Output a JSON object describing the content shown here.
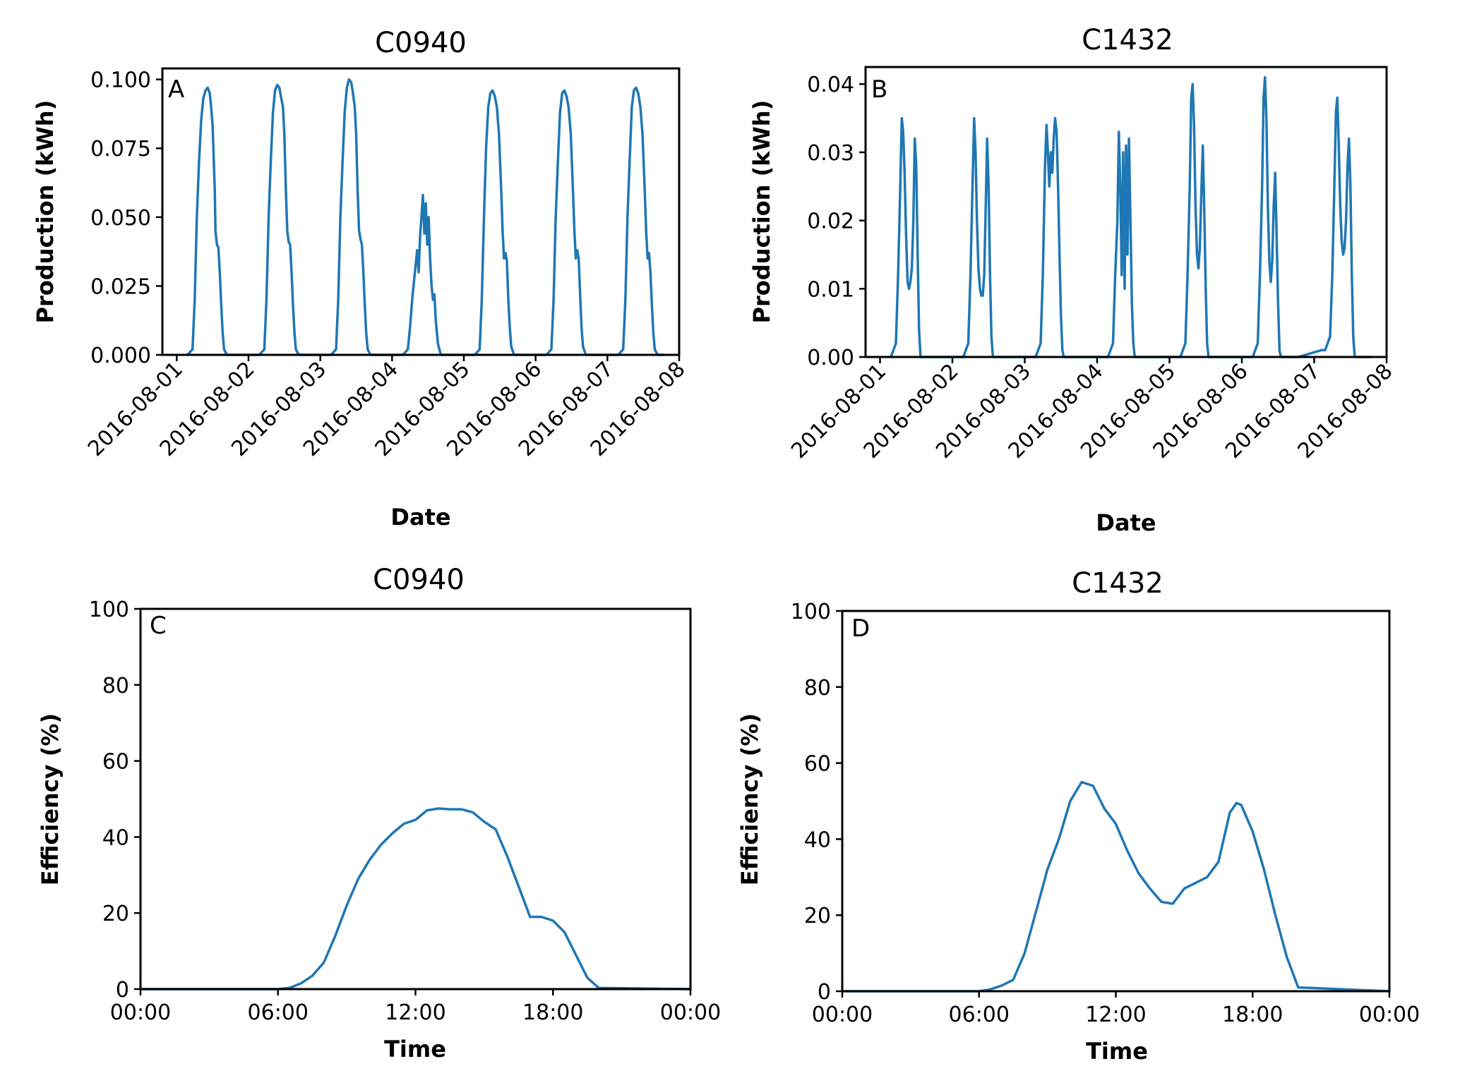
{
  "colors": {
    "series": "#1f77b4"
  },
  "chart_data": [
    {
      "id": "A",
      "type": "line",
      "panel_label": "A",
      "title": "C0940",
      "xlabel": "Date",
      "ylabel": "Production (kWh)",
      "xlim": [
        -0.2,
        7.0
      ],
      "ylim": [
        0,
        0.104
      ],
      "yticks": [
        0,
        0.025,
        0.05,
        0.075,
        0.1
      ],
      "ytick_labels": [
        "0.000",
        "0.025",
        "0.050",
        "0.075",
        "0.100"
      ],
      "xticks": [
        0,
        1,
        2,
        3,
        4,
        5,
        6,
        7
      ],
      "xtick_labels": [
        "2016-08-01",
        "2016-08-02",
        "2016-08-03",
        "2016-08-04",
        "2016-08-05",
        "2016-08-06",
        "2016-08-07",
        "2016-08-08"
      ],
      "series": [
        {
          "name": "production",
          "x": [
            0.15,
            0.22,
            0.25,
            0.28,
            0.31,
            0.34,
            0.37,
            0.4,
            0.43,
            0.46,
            0.48,
            0.5,
            0.53,
            0.54,
            0.56,
            0.58,
            0.6,
            0.62,
            0.64,
            0.66,
            0.7,
            0.75,
            0.78,
            1.15,
            1.22,
            1.25,
            1.28,
            1.31,
            1.34,
            1.37,
            1.4,
            1.43,
            1.45,
            1.48,
            1.5,
            1.52,
            1.54,
            1.56,
            1.58,
            1.6,
            1.62,
            1.64,
            1.66,
            1.7,
            1.75,
            1.78,
            2.15,
            2.22,
            2.25,
            2.28,
            2.31,
            2.34,
            2.37,
            2.4,
            2.43,
            2.45,
            2.48,
            2.5,
            2.52,
            2.54,
            2.56,
            2.58,
            2.6,
            2.62,
            2.64,
            2.66,
            2.7,
            2.75,
            2.78,
            3.15,
            3.22,
            3.25,
            3.28,
            3.31,
            3.33,
            3.35,
            3.37,
            3.39,
            3.41,
            3.43,
            3.45,
            3.47,
            3.49,
            3.51,
            3.53,
            3.55,
            3.57,
            3.59,
            3.61,
            3.64,
            3.68,
            3.72,
            3.76,
            3.8,
            4.15,
            4.22,
            4.25,
            4.28,
            4.31,
            4.34,
            4.37,
            4.4,
            4.43,
            4.46,
            4.49,
            4.52,
            4.54,
            4.56,
            4.58,
            4.6,
            4.62,
            4.64,
            4.66,
            4.7,
            4.75,
            4.78,
            5.15,
            5.22,
            5.25,
            5.28,
            5.31,
            5.34,
            5.37,
            5.4,
            5.43,
            5.46,
            5.49,
            5.52,
            5.54,
            5.56,
            5.58,
            5.6,
            5.62,
            5.64,
            5.66,
            5.7,
            5.75,
            5.78,
            6.15,
            6.22,
            6.25,
            6.28,
            6.31,
            6.34,
            6.37,
            6.4,
            6.43,
            6.46,
            6.49,
            6.52,
            6.54,
            6.56,
            6.58,
            6.6,
            6.62,
            6.64,
            6.66,
            6.7,
            6.75,
            6.78
          ],
          "y": [
            0,
            0.002,
            0.02,
            0.05,
            0.07,
            0.085,
            0.093,
            0.096,
            0.097,
            0.095,
            0.09,
            0.083,
            0.06,
            0.045,
            0.04,
            0.039,
            0.03,
            0.018,
            0.008,
            0.002,
            0,
            0,
            0,
            0,
            0.002,
            0.02,
            0.05,
            0.07,
            0.088,
            0.096,
            0.098,
            0.097,
            0.094,
            0.09,
            0.08,
            0.06,
            0.045,
            0.041,
            0.04,
            0.03,
            0.018,
            0.008,
            0.002,
            0,
            0,
            0,
            0,
            0.002,
            0.02,
            0.05,
            0.07,
            0.088,
            0.097,
            0.1,
            0.099,
            0.096,
            0.09,
            0.08,
            0.06,
            0.045,
            0.042,
            0.04,
            0.03,
            0.018,
            0.008,
            0.002,
            0,
            0,
            0,
            0,
            0.002,
            0.01,
            0.02,
            0.028,
            0.033,
            0.038,
            0.03,
            0.043,
            0.05,
            0.058,
            0.044,
            0.055,
            0.04,
            0.05,
            0.035,
            0.025,
            0.02,
            0.022,
            0.012,
            0.004,
            0,
            0,
            0,
            0,
            0,
            0.002,
            0.02,
            0.05,
            0.075,
            0.09,
            0.095,
            0.096,
            0.094,
            0.09,
            0.08,
            0.06,
            0.045,
            0.035,
            0.037,
            0.034,
            0.02,
            0.01,
            0.003,
            0,
            0,
            0,
            0,
            0.002,
            0.02,
            0.05,
            0.07,
            0.088,
            0.095,
            0.096,
            0.094,
            0.09,
            0.08,
            0.06,
            0.045,
            0.035,
            0.038,
            0.035,
            0.022,
            0.01,
            0.003,
            0,
            0,
            0,
            0,
            0.002,
            0.02,
            0.05,
            0.07,
            0.09,
            0.096,
            0.097,
            0.095,
            0.09,
            0.08,
            0.06,
            0.045,
            0.035,
            0.037,
            0.03,
            0.018,
            0.008,
            0.002,
            0,
            0,
            0
          ]
        }
      ]
    },
    {
      "id": "B",
      "type": "line",
      "panel_label": "B",
      "title": "C1432",
      "xlabel": "Date",
      "ylabel": "Production (kWh)",
      "xlim": [
        -0.2,
        7.0
      ],
      "ylim": [
        0,
        0.0425
      ],
      "yticks": [
        0,
        0.01,
        0.02,
        0.03,
        0.04
      ],
      "ytick_labels": [
        "0.00",
        "0.01",
        "0.02",
        "0.03",
        "0.04"
      ],
      "xticks": [
        0,
        1,
        2,
        3,
        4,
        5,
        6,
        7
      ],
      "xtick_labels": [
        "2016-08-01",
        "2016-08-02",
        "2016-08-03",
        "2016-08-04",
        "2016-08-05",
        "2016-08-06",
        "2016-08-07",
        "2016-08-08"
      ],
      "series": [
        {
          "name": "production",
          "x": [
            0.15,
            0.22,
            0.25,
            0.28,
            0.3,
            0.32,
            0.34,
            0.36,
            0.38,
            0.4,
            0.42,
            0.44,
            0.46,
            0.48,
            0.5,
            0.52,
            0.54,
            0.56,
            0.58,
            0.6,
            0.62,
            0.64,
            0.7,
            0.78,
            1.15,
            1.22,
            1.25,
            1.28,
            1.3,
            1.32,
            1.34,
            1.36,
            1.38,
            1.4,
            1.42,
            1.44,
            1.46,
            1.48,
            1.5,
            1.52,
            1.54,
            1.56,
            1.58,
            1.6,
            1.62,
            1.64,
            1.7,
            1.78,
            2.15,
            2.22,
            2.25,
            2.28,
            2.3,
            2.32,
            2.34,
            2.36,
            2.38,
            2.4,
            2.42,
            2.44,
            2.46,
            2.48,
            2.5,
            2.52,
            2.54,
            2.56,
            2.58,
            2.6,
            2.62,
            2.64,
            2.7,
            2.78,
            3.15,
            3.22,
            3.25,
            3.28,
            3.3,
            3.32,
            3.34,
            3.36,
            3.38,
            3.4,
            3.42,
            3.44,
            3.46,
            3.48,
            3.5,
            3.52,
            3.54,
            3.56,
            3.58,
            3.6,
            3.62,
            3.64,
            3.7,
            3.78,
            4.15,
            4.22,
            4.25,
            4.28,
            4.3,
            4.32,
            4.34,
            4.36,
            4.38,
            4.4,
            4.42,
            4.44,
            4.46,
            4.48,
            4.5,
            4.52,
            4.54,
            4.56,
            4.58,
            4.6,
            4.62,
            4.64,
            4.7,
            4.78,
            5.15,
            5.22,
            5.25,
            5.28,
            5.3,
            5.32,
            5.34,
            5.36,
            5.38,
            5.4,
            5.42,
            5.44,
            5.46,
            5.48,
            5.5,
            5.52,
            5.54,
            5.56,
            5.58,
            5.6,
            5.62,
            5.64,
            5.7,
            5.78,
            6.1,
            6.15,
            6.22,
            6.25,
            6.28,
            6.3,
            6.32,
            6.34,
            6.36,
            6.38,
            6.4,
            6.42,
            6.44,
            6.46,
            6.48,
            6.5,
            6.52,
            6.54,
            6.56,
            6.58,
            6.6,
            6.62,
            6.64,
            6.7,
            6.78
          ],
          "y": [
            0,
            0.002,
            0.012,
            0.025,
            0.035,
            0.033,
            0.027,
            0.018,
            0.011,
            0.01,
            0.011,
            0.013,
            0.02,
            0.032,
            0.028,
            0.015,
            0.004,
            0,
            0,
            0,
            0,
            0,
            0,
            0,
            0,
            0.002,
            0.012,
            0.026,
            0.035,
            0.03,
            0.02,
            0.013,
            0.01,
            0.009,
            0.009,
            0.012,
            0.022,
            0.032,
            0.025,
            0.012,
            0.003,
            0,
            0,
            0,
            0,
            0,
            0,
            0,
            0,
            0.002,
            0.012,
            0.028,
            0.034,
            0.03,
            0.025,
            0.03,
            0.027,
            0.032,
            0.035,
            0.033,
            0.025,
            0.015,
            0.006,
            0.001,
            0,
            0,
            0,
            0,
            0,
            0,
            0,
            0,
            0,
            0.002,
            0.012,
            0.02,
            0.033,
            0.025,
            0.012,
            0.03,
            0.01,
            0.031,
            0.015,
            0.032,
            0.02,
            0.008,
            0.002,
            0,
            0,
            0,
            0,
            0,
            0,
            0,
            0,
            0,
            0,
            0.002,
            0.012,
            0.025,
            0.038,
            0.04,
            0.034,
            0.022,
            0.015,
            0.013,
            0.016,
            0.024,
            0.031,
            0.022,
            0.01,
            0.002,
            0,
            0,
            0,
            0,
            0,
            0,
            0,
            0,
            0,
            0.002,
            0.012,
            0.025,
            0.038,
            0.041,
            0.035,
            0.022,
            0.014,
            0.011,
            0.014,
            0.022,
            0.027,
            0.018,
            0.008,
            0.001,
            0,
            0,
            0,
            0,
            0,
            0,
            0,
            0,
            0.001,
            0.001,
            0.003,
            0.012,
            0.026,
            0.036,
            0.038,
            0.031,
            0.022,
            0.017,
            0.015,
            0.016,
            0.02,
            0.028,
            0.032,
            0.025,
            0.012,
            0.003,
            0,
            0,
            0,
            0,
            0,
            0,
            0
          ]
        }
      ]
    },
    {
      "id": "C",
      "type": "line",
      "panel_label": "C",
      "title": "C0940",
      "xlabel": "Time",
      "ylabel": "Efficiency (%)",
      "xlim": [
        0,
        24
      ],
      "ylim": [
        0,
        100
      ],
      "yticks": [
        0,
        20,
        40,
        60,
        80,
        100
      ],
      "ytick_labels": [
        "0",
        "20",
        "40",
        "60",
        "80",
        "100"
      ],
      "xticks": [
        0,
        6,
        12,
        18,
        24
      ],
      "xtick_labels": [
        "00:00",
        "06:00",
        "12:00",
        "18:00",
        "00:00"
      ],
      "series": [
        {
          "name": "efficiency",
          "x": [
            0,
            6,
            6.5,
            7,
            7.5,
            8,
            8.5,
            9,
            9.5,
            10,
            10.5,
            11,
            11.5,
            12,
            12.5,
            13,
            13.5,
            14,
            14.5,
            15,
            15.5,
            16,
            16.5,
            17,
            17.5,
            18,
            18.5,
            19,
            19.5,
            20,
            24
          ],
          "y": [
            0,
            0,
            0.3,
            1.5,
            3.5,
            7,
            14,
            22,
            29,
            34,
            38,
            41,
            43.5,
            44.5,
            47,
            47.5,
            47.3,
            47.3,
            46.5,
            44,
            42,
            35,
            27,
            19,
            19,
            18,
            15,
            9,
            3,
            0.3,
            0
          ]
        }
      ]
    },
    {
      "id": "D",
      "type": "line",
      "panel_label": "D",
      "title": "C1432",
      "xlabel": "Time",
      "ylabel": "Efficiency (%)",
      "xlim": [
        0,
        24
      ],
      "ylim": [
        0,
        100
      ],
      "yticks": [
        0,
        20,
        40,
        60,
        80,
        100
      ],
      "ytick_labels": [
        "0",
        "20",
        "40",
        "60",
        "80",
        "100"
      ],
      "xticks": [
        0,
        6,
        12,
        18,
        24
      ],
      "xtick_labels": [
        "00:00",
        "06:00",
        "12:00",
        "18:00",
        "00:00"
      ],
      "series": [
        {
          "name": "efficiency",
          "x": [
            0,
            6,
            6.5,
            7,
            7.5,
            8,
            8.5,
            9,
            9.5,
            10,
            10.5,
            11,
            11.5,
            12,
            12.5,
            13,
            13.5,
            14,
            14.5,
            15,
            15.5,
            16,
            16.5,
            17,
            17.3,
            17.5,
            18,
            18.5,
            19,
            19.5,
            20,
            24
          ],
          "y": [
            0,
            0,
            0.5,
            1.5,
            3,
            10,
            21,
            32,
            40,
            50,
            55,
            54,
            48,
            44,
            37,
            31,
            27,
            23.5,
            23,
            27,
            28.5,
            30,
            34,
            47,
            49.5,
            49,
            42,
            32,
            20,
            9,
            1,
            0
          ]
        }
      ]
    }
  ]
}
